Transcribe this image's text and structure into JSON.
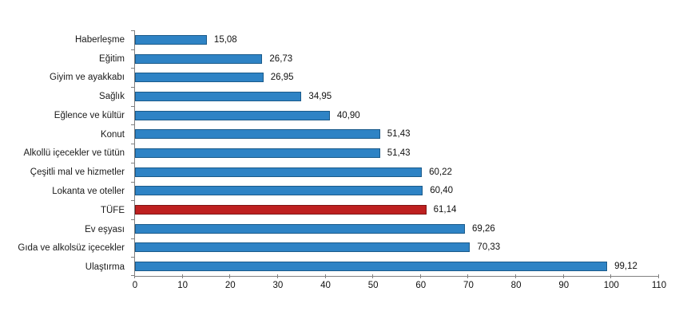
{
  "chart_data": {
    "type": "bar",
    "orientation": "horizontal",
    "title": "",
    "categories": [
      "Haberleşme",
      "Eğitim",
      "Giyim ve ayakkabı",
      "Sağlık",
      "Eğlence ve kültür",
      "Konut",
      "Alkollü içecekler ve tütün",
      "Çeşitli mal ve hizmetler",
      "Lokanta ve oteller",
      "TÜFE",
      "Ev eşyası",
      "Gıda ve alkolsüz içecekler",
      "Ulaştırma"
    ],
    "values": [
      15.08,
      26.73,
      26.95,
      34.95,
      40.9,
      51.43,
      51.43,
      60.22,
      60.4,
      61.14,
      69.26,
      70.33,
      99.12
    ],
    "value_labels": [
      "15,08",
      "26,73",
      "26,95",
      "34,95",
      "40,90",
      "51,43",
      "51,43",
      "60,22",
      "60,40",
      "61,14",
      "69,26",
      "70,33",
      "99,12"
    ],
    "highlight_category": "TÜFE",
    "xlim": [
      0,
      110
    ],
    "x_ticks": [
      0,
      10,
      20,
      30,
      40,
      50,
      60,
      70,
      80,
      90,
      100,
      110
    ],
    "grid": "off",
    "legend": "none",
    "colors": {
      "bar_fill": "#2E83C5",
      "bar_border": "#1A5A8A",
      "highlight_fill": "#BE2020",
      "highlight_border": "#7E1414",
      "axis": "#808080",
      "text": "#111111"
    }
  }
}
